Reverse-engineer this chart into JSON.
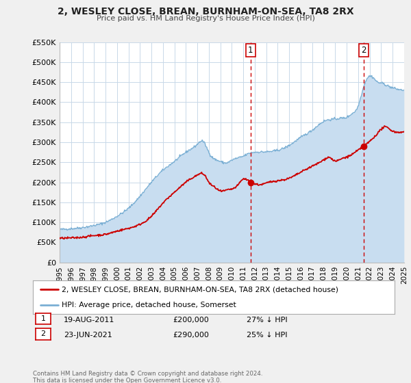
{
  "title": "2, WESLEY CLOSE, BREAN, BURNHAM-ON-SEA, TA8 2RX",
  "subtitle": "Price paid vs. HM Land Registry's House Price Index (HPI)",
  "ylim": [
    0,
    550000
  ],
  "yticks": [
    0,
    50000,
    100000,
    150000,
    200000,
    250000,
    300000,
    350000,
    400000,
    450000,
    500000,
    550000
  ],
  "ytick_labels": [
    "£0",
    "£50K",
    "£100K",
    "£150K",
    "£200K",
    "£250K",
    "£300K",
    "£350K",
    "£400K",
    "£450K",
    "£500K",
    "£550K"
  ],
  "xlim_start": 1995,
  "xlim_end": 2025,
  "xticks": [
    1995,
    1996,
    1997,
    1998,
    1999,
    2000,
    2001,
    2002,
    2003,
    2004,
    2005,
    2006,
    2007,
    2008,
    2009,
    2010,
    2011,
    2012,
    2013,
    2014,
    2015,
    2016,
    2017,
    2018,
    2019,
    2020,
    2021,
    2022,
    2023,
    2024,
    2025
  ],
  "property_color": "#cc0000",
  "hpi_fill_color": "#c8ddf0",
  "hpi_line_color": "#7aafd4",
  "vline_color": "#cc0000",
  "marker1_x": 2011.64,
  "marker1_y": 200000,
  "marker2_x": 2021.48,
  "marker2_y": 290000,
  "legend_property_label": "2, WESLEY CLOSE, BREAN, BURNHAM-ON-SEA, TA8 2RX (detached house)",
  "legend_hpi_label": "HPI: Average price, detached house, Somerset",
  "note1_num": "1",
  "note1_date": "19-AUG-2011",
  "note1_price": "£200,000",
  "note1_pct": "27% ↓ HPI",
  "note2_num": "2",
  "note2_date": "23-JUN-2021",
  "note2_price": "£290,000",
  "note2_pct": "25% ↓ HPI",
  "footer": "Contains HM Land Registry data © Crown copyright and database right 2024.\nThis data is licensed under the Open Government Licence v3.0.",
  "background_color": "#f0f0f0",
  "plot_bg_color": "#ffffff",
  "grid_color": "#c8d8e8"
}
